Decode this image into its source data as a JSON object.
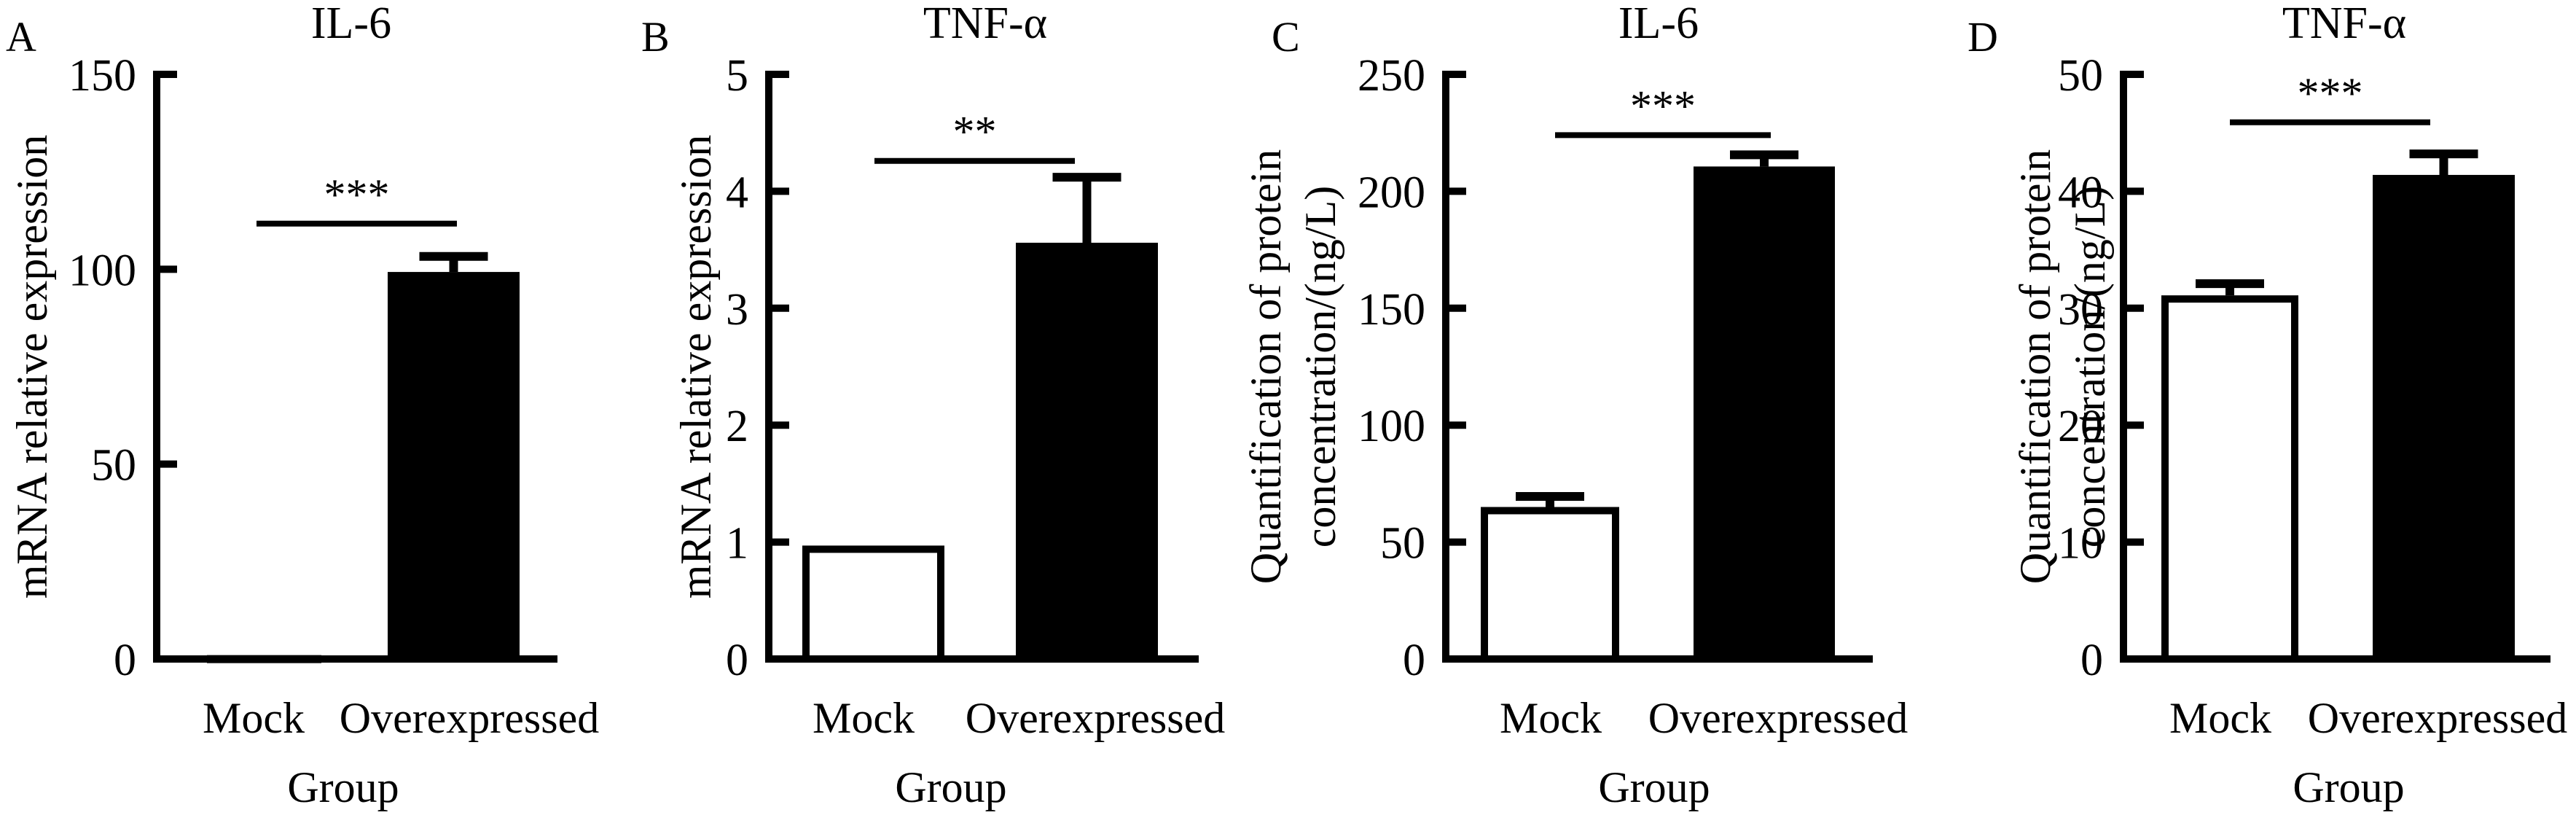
{
  "colors": {
    "ink": "#000000",
    "mock_fill": "#ffffff",
    "overexpressed_fill": "#000000",
    "background": "#ffffff"
  },
  "chart_data": [
    {
      "panel": "A",
      "type": "bar",
      "title": "IL-6",
      "xlabel": "Group",
      "ylabel": [
        "mRNA relative expression"
      ],
      "categories": [
        "Mock",
        "Overexpressed"
      ],
      "values": [
        1,
        99.3
      ],
      "errors": [
        0,
        4
      ],
      "yticks": [
        0,
        50,
        100,
        150
      ],
      "ylim": [
        0,
        150
      ],
      "significance": {
        "label": "***",
        "level": 111.7
      },
      "grid": false
    },
    {
      "panel": "B",
      "type": "bar",
      "title": "TNF-α",
      "xlabel": "Group",
      "ylabel": [
        "mRNA relative expression"
      ],
      "categories": [
        "Mock",
        "Overexpressed"
      ],
      "values": [
        0.97,
        3.56
      ],
      "errors": [
        0,
        0.56
      ],
      "yticks": [
        0,
        1,
        2,
        3,
        4,
        5
      ],
      "ylim": [
        0,
        5
      ],
      "significance": {
        "label": "**",
        "level": 4.26
      },
      "grid": false
    },
    {
      "panel": "C",
      "type": "bar",
      "title": "IL-6",
      "xlabel": "Group",
      "ylabel": [
        "Quantification of protein",
        "concentration/(ng/L)"
      ],
      "categories": [
        "Mock",
        "Overexpressed"
      ],
      "values": [
        65,
        210.6
      ],
      "errors": [
        4.5,
        5
      ],
      "yticks": [
        0,
        50,
        100,
        150,
        200,
        250
      ],
      "ylim": [
        0,
        250
      ],
      "significance": {
        "label": "***",
        "level": 224
      },
      "grid": false
    },
    {
      "panel": "D",
      "type": "bar",
      "title": "TNF-α",
      "xlabel": "Group",
      "ylabel": [
        "Quantification of protein",
        "concentration/(ng/L)"
      ],
      "categories": [
        "Mock",
        "Overexpressed"
      ],
      "values": [
        31.1,
        41.4
      ],
      "errors": [
        1,
        1.8
      ],
      "yticks": [
        0,
        10,
        20,
        30,
        40,
        50
      ],
      "ylim": [
        0,
        50
      ],
      "significance": {
        "label": "***",
        "level": 45.9
      },
      "grid": false
    }
  ]
}
